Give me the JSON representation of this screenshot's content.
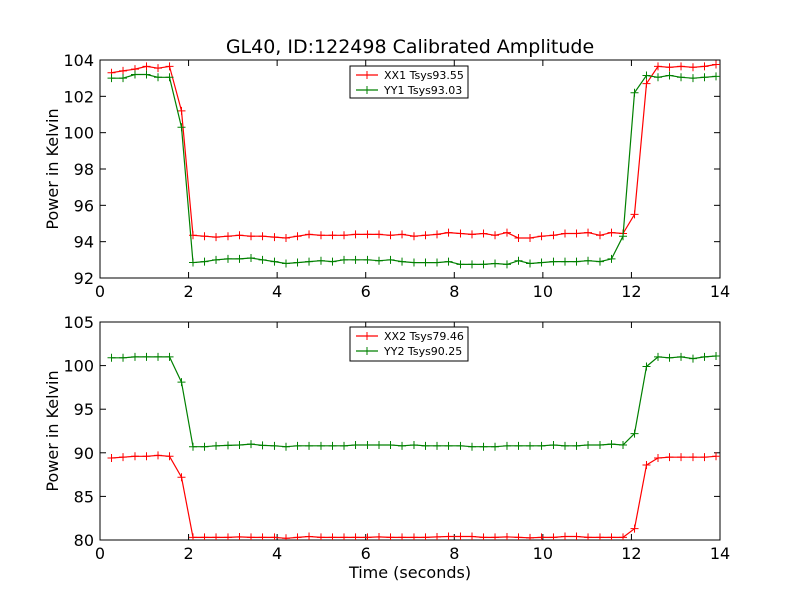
{
  "figure": {
    "title": "GL40, ID:122498 Calibrated Amplitude"
  },
  "chart_data": [
    {
      "type": "line",
      "title": "GL40, ID:122498 Calibrated Amplitude",
      "xlabel": "",
      "ylabel": "Power in Kelvin",
      "xlim": [
        0,
        14
      ],
      "ylim": [
        92,
        104
      ],
      "xticks": [
        0,
        2,
        4,
        6,
        8,
        10,
        12,
        14
      ],
      "yticks": [
        92,
        94,
        96,
        98,
        100,
        102,
        104
      ],
      "grid": false,
      "legend_position": "top-center",
      "x": [
        0.26,
        0.52,
        0.79,
        1.05,
        1.31,
        1.57,
        1.84,
        2.1,
        2.36,
        2.62,
        2.89,
        3.15,
        3.41,
        3.67,
        3.94,
        4.2,
        4.46,
        4.72,
        4.99,
        5.25,
        5.51,
        5.77,
        6.04,
        6.3,
        6.56,
        6.82,
        7.09,
        7.35,
        7.61,
        7.87,
        8.14,
        8.4,
        8.66,
        8.92,
        9.19,
        9.45,
        9.71,
        9.97,
        10.24,
        10.5,
        10.76,
        11.02,
        11.29,
        11.55,
        11.81,
        12.07,
        12.34,
        12.6,
        12.86,
        13.12,
        13.39,
        13.65,
        13.91
      ],
      "series": [
        {
          "name": "XX1 Tsys93.55",
          "color": "#ff0000",
          "values": [
            103.3,
            103.4,
            103.5,
            103.65,
            103.55,
            103.65,
            101.2,
            94.35,
            94.3,
            94.25,
            94.3,
            94.35,
            94.3,
            94.3,
            94.25,
            94.2,
            94.3,
            94.4,
            94.35,
            94.35,
            94.35,
            94.4,
            94.4,
            94.4,
            94.35,
            94.4,
            94.3,
            94.35,
            94.4,
            94.5,
            94.45,
            94.4,
            94.45,
            94.35,
            94.5,
            94.2,
            94.2,
            94.3,
            94.35,
            94.45,
            94.45,
            94.5,
            94.35,
            94.5,
            94.45,
            95.5,
            102.7,
            103.65,
            103.6,
            103.65,
            103.6,
            103.65,
            103.75
          ]
        },
        {
          "name": "YY1 Tsys93.03",
          "color": "#008000",
          "values": [
            103.0,
            103.0,
            103.2,
            103.2,
            103.05,
            103.05,
            100.3,
            92.85,
            92.9,
            93.0,
            93.05,
            93.05,
            93.1,
            93.0,
            92.9,
            92.8,
            92.85,
            92.9,
            92.95,
            92.9,
            93.0,
            93.0,
            93.0,
            92.95,
            93.0,
            92.9,
            92.85,
            92.85,
            92.85,
            92.9,
            92.75,
            92.75,
            92.75,
            92.8,
            92.75,
            92.95,
            92.8,
            92.85,
            92.9,
            92.9,
            92.9,
            92.95,
            92.9,
            93.05,
            94.3,
            102.2,
            103.15,
            103.05,
            103.15,
            103.05,
            103.0,
            103.05,
            103.1
          ]
        }
      ]
    },
    {
      "type": "line",
      "title": "",
      "xlabel": "Time (seconds)",
      "ylabel": "Power in Kelvin",
      "xlim": [
        0,
        14
      ],
      "ylim": [
        80,
        105
      ],
      "xticks": [
        0,
        2,
        4,
        6,
        8,
        10,
        12,
        14
      ],
      "yticks": [
        80,
        85,
        90,
        95,
        100,
        105
      ],
      "grid": false,
      "legend_position": "top-center",
      "x": [
        0.26,
        0.52,
        0.79,
        1.05,
        1.31,
        1.57,
        1.84,
        2.1,
        2.36,
        2.62,
        2.89,
        3.15,
        3.41,
        3.67,
        3.94,
        4.2,
        4.46,
        4.72,
        4.99,
        5.25,
        5.51,
        5.77,
        6.04,
        6.3,
        6.56,
        6.82,
        7.09,
        7.35,
        7.61,
        7.87,
        8.14,
        8.4,
        8.66,
        8.92,
        9.19,
        9.45,
        9.71,
        9.97,
        10.24,
        10.5,
        10.76,
        11.02,
        11.29,
        11.55,
        11.81,
        12.07,
        12.34,
        12.6,
        12.86,
        13.12,
        13.39,
        13.65,
        13.91
      ],
      "series": [
        {
          "name": "XX2 Tsys79.46",
          "color": "#ff0000",
          "values": [
            89.4,
            89.5,
            89.6,
            89.6,
            89.7,
            89.6,
            87.2,
            80.3,
            80.3,
            80.3,
            80.3,
            80.35,
            80.3,
            80.3,
            80.3,
            80.2,
            80.3,
            80.4,
            80.3,
            80.3,
            80.3,
            80.3,
            80.3,
            80.35,
            80.3,
            80.3,
            80.3,
            80.3,
            80.35,
            80.4,
            80.4,
            80.4,
            80.3,
            80.3,
            80.35,
            80.3,
            80.25,
            80.3,
            80.3,
            80.4,
            80.4,
            80.3,
            80.3,
            80.3,
            80.3,
            81.3,
            88.6,
            89.4,
            89.5,
            89.5,
            89.5,
            89.5,
            89.6
          ]
        },
        {
          "name": "YY2 Tsys90.25",
          "color": "#008000",
          "values": [
            100.9,
            100.9,
            101.0,
            101.0,
            101.0,
            101.0,
            98.1,
            90.7,
            90.7,
            90.8,
            90.85,
            90.9,
            91.0,
            90.85,
            90.8,
            90.7,
            90.8,
            90.8,
            90.8,
            90.8,
            90.8,
            90.9,
            90.9,
            90.9,
            90.9,
            90.8,
            90.9,
            90.8,
            90.8,
            90.8,
            90.8,
            90.7,
            90.7,
            90.7,
            90.8,
            90.8,
            90.8,
            90.8,
            90.9,
            90.8,
            90.8,
            90.9,
            90.9,
            91.0,
            90.9,
            92.2,
            99.9,
            101.0,
            100.9,
            101.0,
            100.8,
            101.0,
            101.1
          ]
        }
      ]
    }
  ]
}
